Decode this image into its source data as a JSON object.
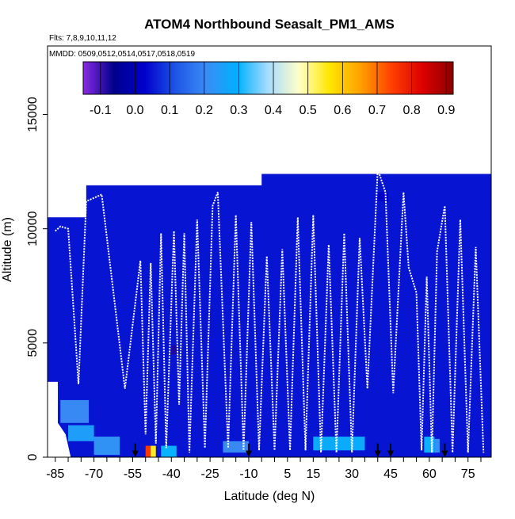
{
  "chart_data": {
    "type": "heatmap",
    "title": "ATOM4 Northbound Seasalt_PM1_AMS",
    "flights_label": "Flts: 7,8,9,10,11,12",
    "dates_label": "MMDD: 0509,0512,0514,0517,0518,0519",
    "xlabel": "Latitude (deg N)",
    "ylabel": "Altitude (m)",
    "xlim": [
      -88,
      84
    ],
    "ylim": [
      0,
      18000
    ],
    "x_ticks": [
      -85,
      -70,
      -55,
      -40,
      -25,
      -10,
      5,
      15,
      30,
      45,
      60,
      75
    ],
    "y_ticks": [
      0,
      5000,
      10000,
      15000
    ],
    "colorbar": {
      "ticks": [
        -0.1,
        0.0,
        0.1,
        0.2,
        0.3,
        0.4,
        0.5,
        0.6,
        0.7,
        0.8,
        0.9
      ],
      "range": [
        -0.15,
        0.92
      ],
      "colors": [
        "#8a2be2",
        "#00008b",
        "#0000cd",
        "#1e56e6",
        "#3a8df5",
        "#00b0ff",
        "#a8dcff",
        "#ffffc8",
        "#ffe600",
        "#ffa000",
        "#ff4000",
        "#dd0000",
        "#8b0000"
      ]
    },
    "envelope": [
      [
        -88,
        10500
      ],
      [
        -73,
        10500
      ],
      [
        -73,
        11900
      ],
      [
        -5,
        11900
      ],
      [
        -5,
        12400
      ],
      [
        84,
        12400
      ]
    ],
    "cells": [
      {
        "lat0": -83,
        "lat1": -72,
        "alt0": 1500,
        "alt1": 2500,
        "value": 0.2
      },
      {
        "lat0": -80,
        "lat1": -70,
        "alt0": 700,
        "alt1": 1400,
        "value": 0.25
      },
      {
        "lat0": -70,
        "lat1": -60,
        "alt0": 100,
        "alt1": 900,
        "value": 0.22
      },
      {
        "lat0": -50,
        "lat1": -48,
        "alt0": 0,
        "alt1": 500,
        "value": 0.75
      },
      {
        "lat0": -48,
        "lat1": -46,
        "alt0": 0,
        "alt1": 500,
        "value": 0.55
      },
      {
        "lat0": -44,
        "lat1": -38,
        "alt0": 0,
        "alt1": 500,
        "value": 0.3
      },
      {
        "lat0": -40,
        "lat1": -38,
        "alt0": 4500,
        "alt1": 4900,
        "value": -0.08
      },
      {
        "lat0": -20,
        "lat1": -10,
        "alt0": 200,
        "alt1": 700,
        "value": 0.2
      },
      {
        "lat0": 15,
        "lat1": 35,
        "alt0": 300,
        "alt1": 900,
        "value": 0.28
      },
      {
        "lat0": 58,
        "lat1": 62,
        "alt0": 200,
        "alt1": 900,
        "value": 0.3
      },
      {
        "lat0": 62,
        "lat1": 64,
        "alt0": 200,
        "alt1": 800,
        "value": 0.22
      },
      {
        "lat0": 40,
        "lat1": 44,
        "alt0": 11200,
        "alt1": 11600,
        "value": 0.02
      }
    ],
    "flight_tracks": [
      [
        [
          -85,
          9900
        ],
        [
          -83,
          10100
        ],
        [
          -80,
          10000
        ],
        [
          -76,
          3200
        ],
        [
          -73,
          11200
        ],
        [
          -67,
          11500
        ],
        [
          -58,
          3000
        ],
        [
          -55,
          5800
        ],
        [
          -52,
          8600
        ],
        [
          -50,
          1000
        ],
        [
          -48,
          8500
        ],
        [
          -46,
          600
        ],
        [
          -44,
          9800
        ],
        [
          -42,
          400
        ],
        [
          -39,
          9900
        ],
        [
          -37,
          2300
        ],
        [
          -35,
          9800
        ],
        [
          -33,
          200
        ],
        [
          -30,
          10400
        ],
        [
          -27,
          400
        ],
        [
          -24,
          11000
        ],
        [
          -22,
          11600
        ],
        [
          -18,
          400
        ],
        [
          -15,
          10600
        ],
        [
          -12,
          300
        ],
        [
          -9,
          10300
        ],
        [
          -6,
          300
        ],
        [
          -3,
          8800
        ],
        [
          0,
          300
        ],
        [
          3,
          9100
        ],
        [
          6,
          300
        ],
        [
          9,
          10500
        ],
        [
          12,
          300
        ],
        [
          15,
          10600
        ],
        [
          18,
          200
        ],
        [
          21,
          9300
        ],
        [
          24,
          200
        ],
        [
          27,
          9800
        ],
        [
          30,
          200
        ],
        [
          33,
          9600
        ],
        [
          36,
          3000
        ],
        [
          40,
          12600
        ],
        [
          43,
          11600
        ],
        [
          46,
          2800
        ],
        [
          50,
          11600
        ],
        [
          52,
          8300
        ],
        [
          55,
          7200
        ],
        [
          57,
          300
        ],
        [
          59,
          7900
        ],
        [
          61,
          200
        ],
        [
          63,
          9000
        ],
        [
          66,
          11000
        ],
        [
          69,
          200
        ],
        [
          72,
          10400
        ],
        [
          75,
          200
        ],
        [
          78,
          9200
        ],
        [
          81,
          200
        ]
      ]
    ],
    "arrows": [
      -54,
      -10,
      40,
      45,
      66
    ]
  }
}
